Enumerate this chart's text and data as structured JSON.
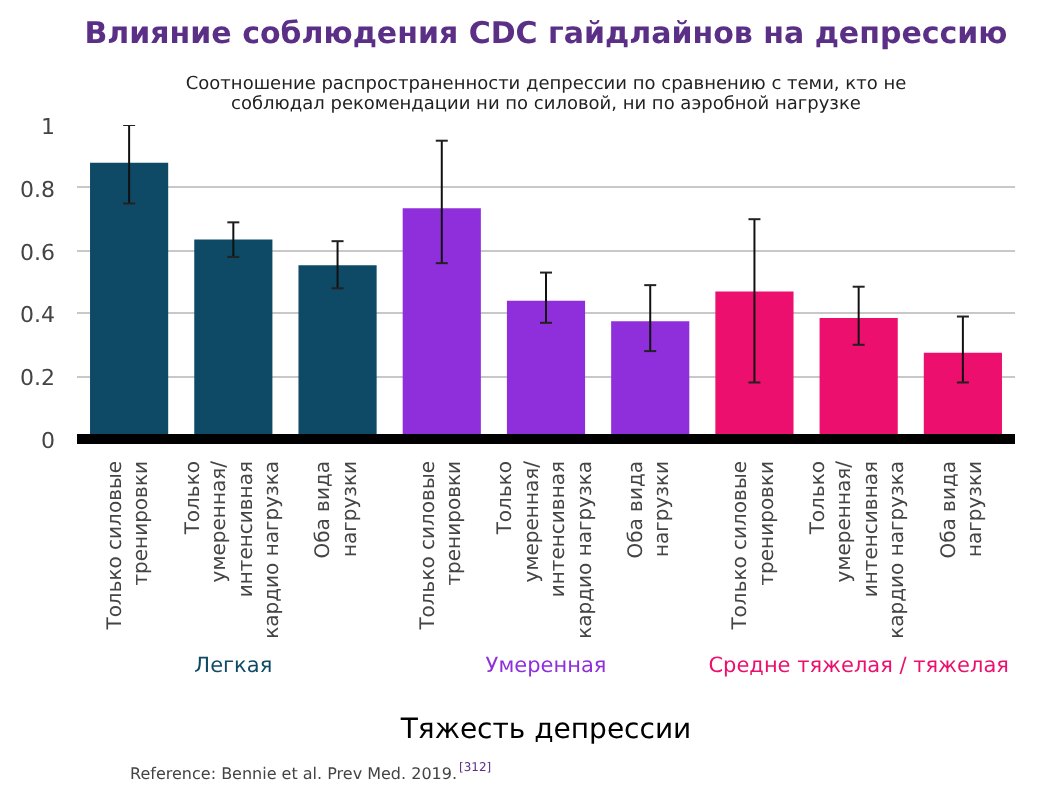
{
  "chart_data": {
    "type": "bar",
    "title": "Влияние соблюдения CDC гайдлайнов на депрессию",
    "subtitle": "Соотношение распространенности депрессии по сравнению с теми, кто не соблюдал рекомендации ни по силовой, ни по аэробной нагрузке",
    "xlabel": "Тяжесть депрессии",
    "categories": [
      "Только силовые тренировки",
      "Только умеренная/ интенсивная кардио нагрузка",
      "Оба вида нагрузки",
      "Только силовые тренировки",
      "Только умеренная/ интенсивная кардио нагрузка",
      "Оба вида нагрузки",
      "Только силовые тренировки",
      "Только умеренная/ интенсивная кардио нагрузка",
      "Оба вида нагрузки"
    ],
    "series": [
      {
        "name": "Легкая",
        "color": "#0e4a66",
        "values": [
          0.88,
          0.635,
          0.553,
          null,
          null,
          null,
          null,
          null,
          null
        ],
        "errors": [
          [
            0.75,
            1.0
          ],
          [
            0.58,
            0.69
          ],
          [
            0.48,
            0.63
          ],
          null,
          null,
          null,
          null,
          null,
          null
        ]
      },
      {
        "name": "Умеренная",
        "color": "#8f2fdb",
        "values": [
          null,
          null,
          null,
          0.735,
          0.44,
          0.375,
          null,
          null,
          null
        ],
        "errors": [
          null,
          null,
          null,
          [
            0.56,
            0.95
          ],
          [
            0.37,
            0.53
          ],
          [
            0.28,
            0.49
          ],
          null,
          null,
          null
        ]
      },
      {
        "name": "Средне тяжелая / тяжелая",
        "color": "#ec0f6e",
        "values": [
          null,
          null,
          null,
          null,
          null,
          null,
          0.47,
          0.385,
          0.275
        ],
        "errors": [
          null,
          null,
          null,
          null,
          null,
          null,
          [
            0.18,
            0.7
          ],
          [
            0.3,
            0.485
          ],
          [
            0.18,
            0.39
          ]
        ]
      }
    ],
    "ylim": [
      0,
      1
    ],
    "yticks": [
      0,
      0.2,
      0.4,
      0.6,
      0.8,
      1
    ],
    "grid": "y",
    "annotations": [
      "Reference: Bennie et al. Prev Med. 2019.$^{[312]}$"
    ]
  }
}
